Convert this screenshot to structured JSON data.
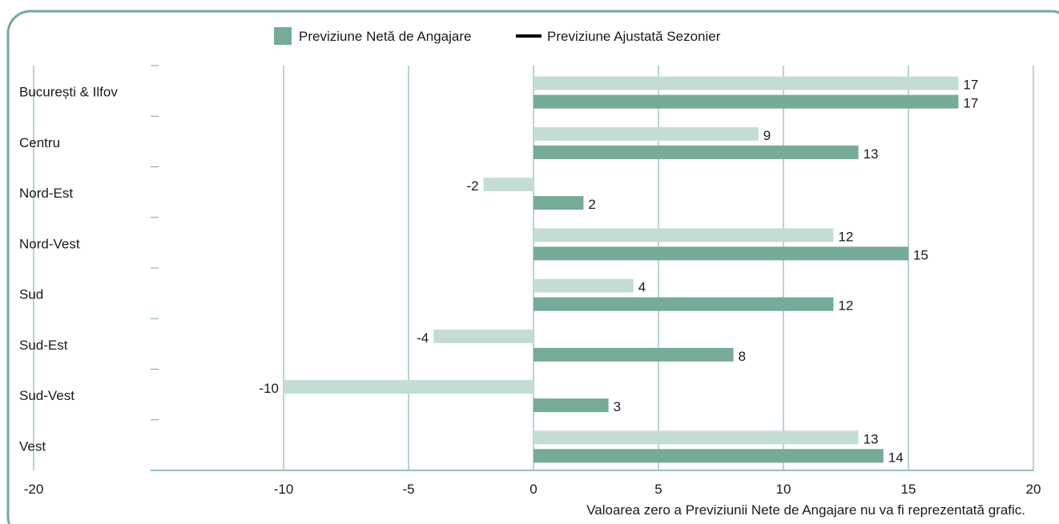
{
  "chart_data": {
    "type": "bar",
    "orientation": "horizontal",
    "categories": [
      "București & Ilfov",
      "Centru",
      "Nord-Est",
      "Nord-Vest",
      "Sud",
      "Sud-Est",
      "Sud-Vest",
      "Vest"
    ],
    "series": [
      {
        "name": "Previziune Ajustată Sezonier",
        "values": [
          17,
          9,
          -2,
          12,
          4,
          -4,
          -10,
          13
        ],
        "color": "#c4ddd3"
      },
      {
        "name": "Previziune Netă de Angajare",
        "values": [
          17,
          13,
          2,
          15,
          12,
          8,
          3,
          14
        ],
        "color": "#76ab96"
      }
    ],
    "xlim": [
      -20,
      20
    ],
    "xticks": [
      -20,
      -10,
      -5,
      0,
      5,
      10,
      15,
      20
    ],
    "grid": true,
    "legend": [
      {
        "label": "Previziune Netă de Angajare",
        "marker": "square",
        "color": "#76ab96"
      },
      {
        "label": "Previziune Ajustată Sezonier",
        "marker": "line",
        "color": "#000000"
      }
    ],
    "legend_position": "top-center",
    "footnote": "Valoarea zero a Previziunii Nete de Angajare nu va fi reprezentată grafic."
  },
  "colors": {
    "frame": "#76ab96",
    "grid": "#76ab96"
  }
}
